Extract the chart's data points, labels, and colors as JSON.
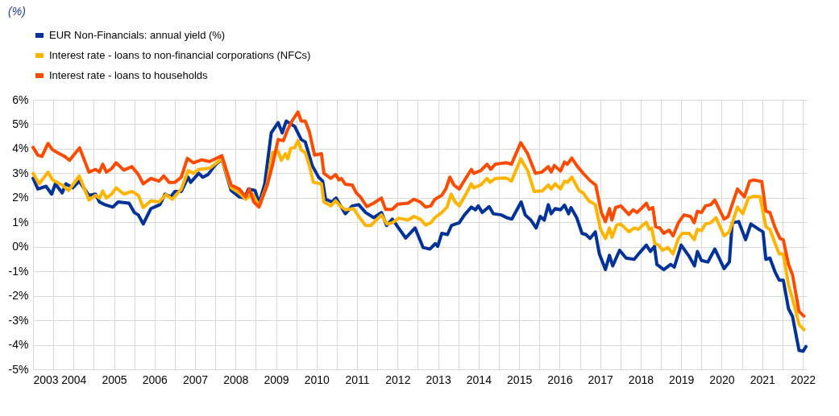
{
  "chart_data": {
    "type": "line",
    "annotations": [
      "(%)"
    ],
    "legend": "top left",
    "grid": true,
    "line_style": "solid",
    "xlim": [
      2003,
      2022.1
    ],
    "xticks": [
      2003,
      {
        "value": 2003.5,
        "label": null
      },
      2004,
      {
        "value": 2004.5,
        "label": null
      },
      2005,
      {
        "value": 2005.5,
        "label": null
      },
      2006,
      {
        "value": 2006.5,
        "label": null
      },
      2007,
      {
        "value": 2007.5,
        "label": null
      },
      2008,
      {
        "value": 2008.5,
        "label": null
      },
      2009,
      {
        "value": 2009.5,
        "label": null
      },
      2010,
      {
        "value": 2010.5,
        "label": null
      },
      2011,
      {
        "value": 2011.5,
        "label": null
      },
      2012,
      {
        "value": 2012.5,
        "label": null
      },
      2013,
      {
        "value": 2013.5,
        "label": null
      },
      2014,
      {
        "value": 2014.5,
        "label": null
      },
      2015,
      {
        "value": 2015.5,
        "label": null
      },
      2016,
      {
        "value": 2016.5,
        "label": null
      },
      2017,
      {
        "value": 2017.5,
        "label": null
      },
      2018,
      {
        "value": 2018.5,
        "label": null
      },
      2019,
      {
        "value": 2019.5,
        "label": null
      },
      2020,
      {
        "value": 2020.5,
        "label": null
      },
      2021,
      {
        "value": 2021.5,
        "label": null
      },
      2022
    ],
    "ylim": [
      -5,
      6
    ],
    "yticks": [
      {
        "value": -5,
        "label": "-5%"
      },
      {
        "value": -4,
        "label": "-4%"
      },
      {
        "value": -3,
        "label": "-3%"
      },
      {
        "value": -2,
        "label": "-2%"
      },
      {
        "value": -1,
        "label": "-1%"
      },
      {
        "value": 0,
        "label": "0%"
      },
      {
        "value": 1,
        "label": "1%"
      },
      {
        "value": 2,
        "label": "2%"
      },
      {
        "value": 3,
        "label": "3%"
      },
      {
        "value": 4,
        "label": "4%"
      },
      {
        "value": 5,
        "label": "5%"
      },
      {
        "value": 6,
        "label": "6%"
      }
    ],
    "series": [
      {
        "name": "EUR Non-Financials: annual yield (%)",
        "color": "#003299",
        "x": [
          2003.0,
          2003.12,
          2003.32,
          2003.46,
          2003.55,
          2003.72,
          2003.81,
          2003.98,
          2004.14,
          2004.38,
          2004.54,
          2004.64,
          2004.77,
          2004.97,
          2005.1,
          2005.37,
          2005.5,
          2005.6,
          2005.72,
          2005.91,
          2006.13,
          2006.26,
          2006.4,
          2006.5,
          2006.66,
          2006.83,
          2006.89,
          2007.09,
          2007.19,
          2007.32,
          2007.49,
          2007.66,
          2007.89,
          2008.09,
          2008.22,
          2008.32,
          2008.48,
          2008.58,
          2008.72,
          2008.88,
          2009.05,
          2009.15,
          2009.25,
          2009.36,
          2009.46,
          2009.62,
          2009.72,
          2009.89,
          2010.05,
          2010.15,
          2010.22,
          2010.38,
          2010.48,
          2010.61,
          2010.71,
          2010.88,
          2011.04,
          2011.21,
          2011.41,
          2011.6,
          2011.73,
          2011.87,
          2012.07,
          2012.2,
          2012.43,
          2012.63,
          2012.8,
          2012.93,
          2012.99,
          2013.09,
          2013.23,
          2013.33,
          2013.52,
          2013.65,
          2013.82,
          2013.92,
          2013.99,
          2014.09,
          2014.26,
          2014.36,
          2014.56,
          2014.69,
          2014.82,
          2015.05,
          2015.15,
          2015.29,
          2015.42,
          2015.52,
          2015.62,
          2015.72,
          2015.79,
          2015.89,
          2016.02,
          2016.12,
          2016.22,
          2016.28,
          2016.42,
          2016.55,
          2016.65,
          2016.75,
          2016.88,
          2016.98,
          2017.13,
          2017.23,
          2017.31,
          2017.48,
          2017.64,
          2017.84,
          2017.97,
          2018.14,
          2018.24,
          2018.34,
          2018.4,
          2018.57,
          2018.74,
          2018.83,
          2019.0,
          2019.2,
          2019.33,
          2019.4,
          2019.5,
          2019.66,
          2019.83,
          2020.06,
          2020.19,
          2020.26,
          2020.42,
          2020.59,
          2020.72,
          2020.92,
          2021.02,
          2021.09,
          2021.19,
          2021.32,
          2021.42,
          2021.52,
          2021.65,
          2021.75,
          2021.91,
          2022.01,
          2022.08
        ],
        "values": [
          2.8,
          2.36,
          2.47,
          2.15,
          2.57,
          2.2,
          2.57,
          2.41,
          2.68,
          2.1,
          2.15,
          1.83,
          1.72,
          1.62,
          1.83,
          1.78,
          1.4,
          1.3,
          0.93,
          1.56,
          1.72,
          2.15,
          2.04,
          2.26,
          2.26,
          2.84,
          2.63,
          3.0,
          2.84,
          2.95,
          3.32,
          3.59,
          2.3,
          2.04,
          1.99,
          2.36,
          2.3,
          1.78,
          2.57,
          4.65,
          5.07,
          4.65,
          5.13,
          5.02,
          4.91,
          4.38,
          4.28,
          3.32,
          2.84,
          2.68,
          1.94,
          1.83,
          1.99,
          1.62,
          1.35,
          1.67,
          1.72,
          1.4,
          1.19,
          1.4,
          0.87,
          1.13,
          0.66,
          0.36,
          0.77,
          -0.03,
          -0.09,
          0.13,
          0.02,
          0.55,
          0.5,
          0.87,
          0.98,
          1.3,
          1.62,
          1.51,
          1.67,
          1.4,
          1.64,
          1.35,
          1.3,
          1.19,
          1.13,
          1.83,
          1.3,
          1.09,
          0.77,
          1.24,
          1.09,
          1.72,
          1.35,
          1.56,
          1.51,
          1.7,
          1.35,
          1.6,
          1.19,
          0.55,
          0.5,
          0.34,
          0.61,
          -0.29,
          -0.93,
          -0.35,
          -0.78,
          -0.14,
          -0.46,
          -0.51,
          -0.25,
          0.07,
          -0.19,
          0.02,
          -0.72,
          -0.93,
          -0.72,
          -0.83,
          0.07,
          -0.4,
          -0.78,
          -0.19,
          -0.56,
          -0.62,
          -0.09,
          -0.89,
          -0.62,
          0.98,
          1.03,
          0.29,
          0.93,
          0.71,
          0.61,
          -0.51,
          -0.46,
          -1.04,
          -1.36,
          -1.36,
          -2.53,
          -2.85,
          -4.23,
          -4.26,
          -4.07
        ]
      },
      {
        "name": "Interest rate - loans to non-financial corporations (NFCs)",
        "color": "#ffb400",
        "x": [
          2003.0,
          2003.15,
          2003.37,
          2003.48,
          2003.72,
          2003.88,
          2004.14,
          2004.38,
          2004.54,
          2004.64,
          2004.72,
          2004.81,
          2004.94,
          2005.05,
          2005.24,
          2005.44,
          2005.6,
          2005.72,
          2005.91,
          2006.11,
          2006.28,
          2006.44,
          2006.66,
          2006.83,
          2006.96,
          2007.09,
          2007.36,
          2007.66,
          2007.89,
          2008.09,
          2008.25,
          2008.42,
          2008.58,
          2008.78,
          2008.91,
          2009.05,
          2009.13,
          2009.23,
          2009.29,
          2009.36,
          2009.46,
          2009.54,
          2009.62,
          2009.72,
          2009.82,
          2009.92,
          2010.12,
          2010.18,
          2010.35,
          2010.47,
          2010.58,
          2010.71,
          2010.91,
          2011.04,
          2011.21,
          2011.34,
          2011.6,
          2011.74,
          2011.87,
          2012.03,
          2012.26,
          2012.4,
          2012.56,
          2012.69,
          2012.82,
          2012.92,
          2013.09,
          2013.22,
          2013.32,
          2013.42,
          2013.52,
          2013.65,
          2013.82,
          2013.88,
          2014.05,
          2014.21,
          2014.28,
          2014.41,
          2014.68,
          2014.81,
          2015.04,
          2015.21,
          2015.37,
          2015.57,
          2015.72,
          2015.79,
          2015.89,
          2016.02,
          2016.12,
          2016.19,
          2016.3,
          2016.48,
          2016.58,
          2016.72,
          2016.88,
          2017.01,
          2017.13,
          2017.23,
          2017.29,
          2017.41,
          2017.51,
          2017.71,
          2017.84,
          2017.94,
          2018.04,
          2018.14,
          2018.21,
          2018.27,
          2018.35,
          2018.44,
          2018.54,
          2018.67,
          2018.8,
          2018.93,
          2019.03,
          2019.2,
          2019.32,
          2019.4,
          2019.5,
          2019.6,
          2019.73,
          2019.86,
          2020.06,
          2020.19,
          2020.39,
          2020.52,
          2020.66,
          2020.79,
          2020.95,
          2021.09,
          2021.19,
          2021.32,
          2021.42,
          2021.52,
          2021.65,
          2021.78,
          2021.91,
          2022.03
        ],
        "values": [
          3.0,
          2.57,
          3.05,
          2.73,
          2.52,
          2.3,
          2.89,
          1.91,
          2.1,
          1.99,
          2.28,
          1.99,
          2.15,
          2.41,
          2.15,
          2.26,
          2.1,
          1.6,
          1.88,
          1.83,
          2.13,
          1.94,
          2.36,
          3.11,
          3.0,
          3.16,
          3.21,
          3.59,
          2.41,
          2.2,
          1.94,
          2.15,
          1.67,
          2.57,
          3.85,
          3.9,
          3.53,
          3.8,
          3.59,
          4.01,
          4.06,
          4.33,
          3.95,
          3.85,
          3.32,
          2.63,
          2.57,
          1.83,
          1.67,
          1.88,
          1.67,
          1.51,
          1.56,
          1.24,
          0.87,
          0.87,
          1.3,
          0.93,
          0.98,
          1.17,
          1.09,
          1.24,
          1.13,
          0.89,
          0.98,
          1.19,
          1.4,
          1.62,
          2.15,
          1.83,
          1.67,
          2.04,
          2.57,
          2.41,
          2.52,
          2.79,
          2.63,
          2.79,
          2.81,
          2.68,
          3.59,
          3.11,
          2.26,
          2.28,
          2.52,
          2.36,
          2.57,
          2.36,
          2.68,
          2.63,
          2.84,
          2.3,
          2.2,
          1.88,
          1.72,
          0.71,
          0.34,
          0.77,
          0.39,
          0.89,
          0.93,
          0.61,
          0.77,
          0.71,
          0.87,
          1.0,
          0.71,
          0.77,
          0.13,
          0.07,
          -0.14,
          -0.03,
          -0.29,
          0.34,
          0.55,
          0.55,
          0.29,
          0.71,
          0.66,
          0.93,
          0.98,
          1.19,
          0.45,
          0.61,
          1.62,
          1.35,
          1.99,
          2.06,
          2.04,
          0.82,
          0.71,
          0.13,
          -0.29,
          -0.29,
          -1.57,
          -2.31,
          -3.17,
          -3.38
        ]
      },
      {
        "name": "Interest rate - loans to households",
        "color": "#ff4b00",
        "x": [
          2003.0,
          2003.12,
          2003.22,
          2003.37,
          2003.48,
          2003.65,
          2003.78,
          2003.9,
          2004.15,
          2004.38,
          2004.54,
          2004.64,
          2004.72,
          2004.81,
          2004.94,
          2005.05,
          2005.24,
          2005.44,
          2005.6,
          2005.72,
          2005.91,
          2006.11,
          2006.23,
          2006.36,
          2006.5,
          2006.66,
          2006.81,
          2006.96,
          2007.16,
          2007.36,
          2007.66,
          2007.89,
          2008.09,
          2008.25,
          2008.34,
          2008.45,
          2008.58,
          2008.78,
          2008.91,
          2009.05,
          2009.18,
          2009.28,
          2009.39,
          2009.54,
          2009.62,
          2009.72,
          2009.82,
          2009.95,
          2010.12,
          2010.18,
          2010.35,
          2010.47,
          2010.55,
          2010.61,
          2010.71,
          2010.88,
          2010.98,
          2011.08,
          2011.24,
          2011.41,
          2011.6,
          2011.7,
          2011.87,
          2012.0,
          2012.26,
          2012.4,
          2012.56,
          2012.69,
          2012.82,
          2012.92,
          2013.09,
          2013.19,
          2013.29,
          2013.39,
          2013.52,
          2013.68,
          2013.82,
          2013.88,
          2014.05,
          2014.21,
          2014.3,
          2014.41,
          2014.68,
          2014.81,
          2015.04,
          2015.21,
          2015.4,
          2015.56,
          2015.72,
          2015.79,
          2015.87,
          2016.02,
          2016.12,
          2016.19,
          2016.3,
          2016.42,
          2016.58,
          2016.75,
          2016.89,
          2017.03,
          2017.13,
          2017.23,
          2017.29,
          2017.38,
          2017.51,
          2017.71,
          2017.81,
          2017.91,
          2018.04,
          2018.14,
          2018.21,
          2018.3,
          2018.37,
          2018.47,
          2018.57,
          2018.7,
          2018.8,
          2018.93,
          2019.07,
          2019.23,
          2019.32,
          2019.4,
          2019.5,
          2019.6,
          2019.73,
          2019.83,
          2020.06,
          2020.16,
          2020.39,
          2020.56,
          2020.69,
          2020.79,
          2020.99,
          2021.09,
          2021.19,
          2021.32,
          2021.44,
          2021.52,
          2021.65,
          2021.75,
          2021.91,
          2022.03
        ],
        "values": [
          4.06,
          3.74,
          3.69,
          4.22,
          3.96,
          3.8,
          3.69,
          3.53,
          4.04,
          3.05,
          3.16,
          3.05,
          3.37,
          3.05,
          3.19,
          3.43,
          3.13,
          3.27,
          2.95,
          2.57,
          2.79,
          2.68,
          2.89,
          2.63,
          2.63,
          2.84,
          3.61,
          3.43,
          3.55,
          3.48,
          3.72,
          2.52,
          2.36,
          2.04,
          2.36,
          1.83,
          1.62,
          2.52,
          3.32,
          4.38,
          4.33,
          4.76,
          5.13,
          5.5,
          5.13,
          5.13,
          4.7,
          3.74,
          3.8,
          3.0,
          2.79,
          2.95,
          2.73,
          2.79,
          2.55,
          2.52,
          2.2,
          2.04,
          1.64,
          1.78,
          1.99,
          1.53,
          1.53,
          1.74,
          1.78,
          1.94,
          1.83,
          1.62,
          1.67,
          1.94,
          2.1,
          2.36,
          2.84,
          2.52,
          2.36,
          2.79,
          3.16,
          3.0,
          3.11,
          3.37,
          3.16,
          3.37,
          3.43,
          3.37,
          4.25,
          3.8,
          3.0,
          3.05,
          3.27,
          3.05,
          3.32,
          3.09,
          3.46,
          3.37,
          3.62,
          3.32,
          3.0,
          2.7,
          2.52,
          1.4,
          1.03,
          1.56,
          1.09,
          1.6,
          1.67,
          1.32,
          1.51,
          1.4,
          1.6,
          1.78,
          1.53,
          1.6,
          0.82,
          0.77,
          0.55,
          0.68,
          0.45,
          0.98,
          1.3,
          1.24,
          0.98,
          1.45,
          1.4,
          1.67,
          1.72,
          1.91,
          1.13,
          1.24,
          2.36,
          2.04,
          2.68,
          2.73,
          2.66,
          1.46,
          1.4,
          0.77,
          0.34,
          0.29,
          -0.72,
          -1.15,
          -2.64,
          -2.83
        ]
      }
    ]
  }
}
